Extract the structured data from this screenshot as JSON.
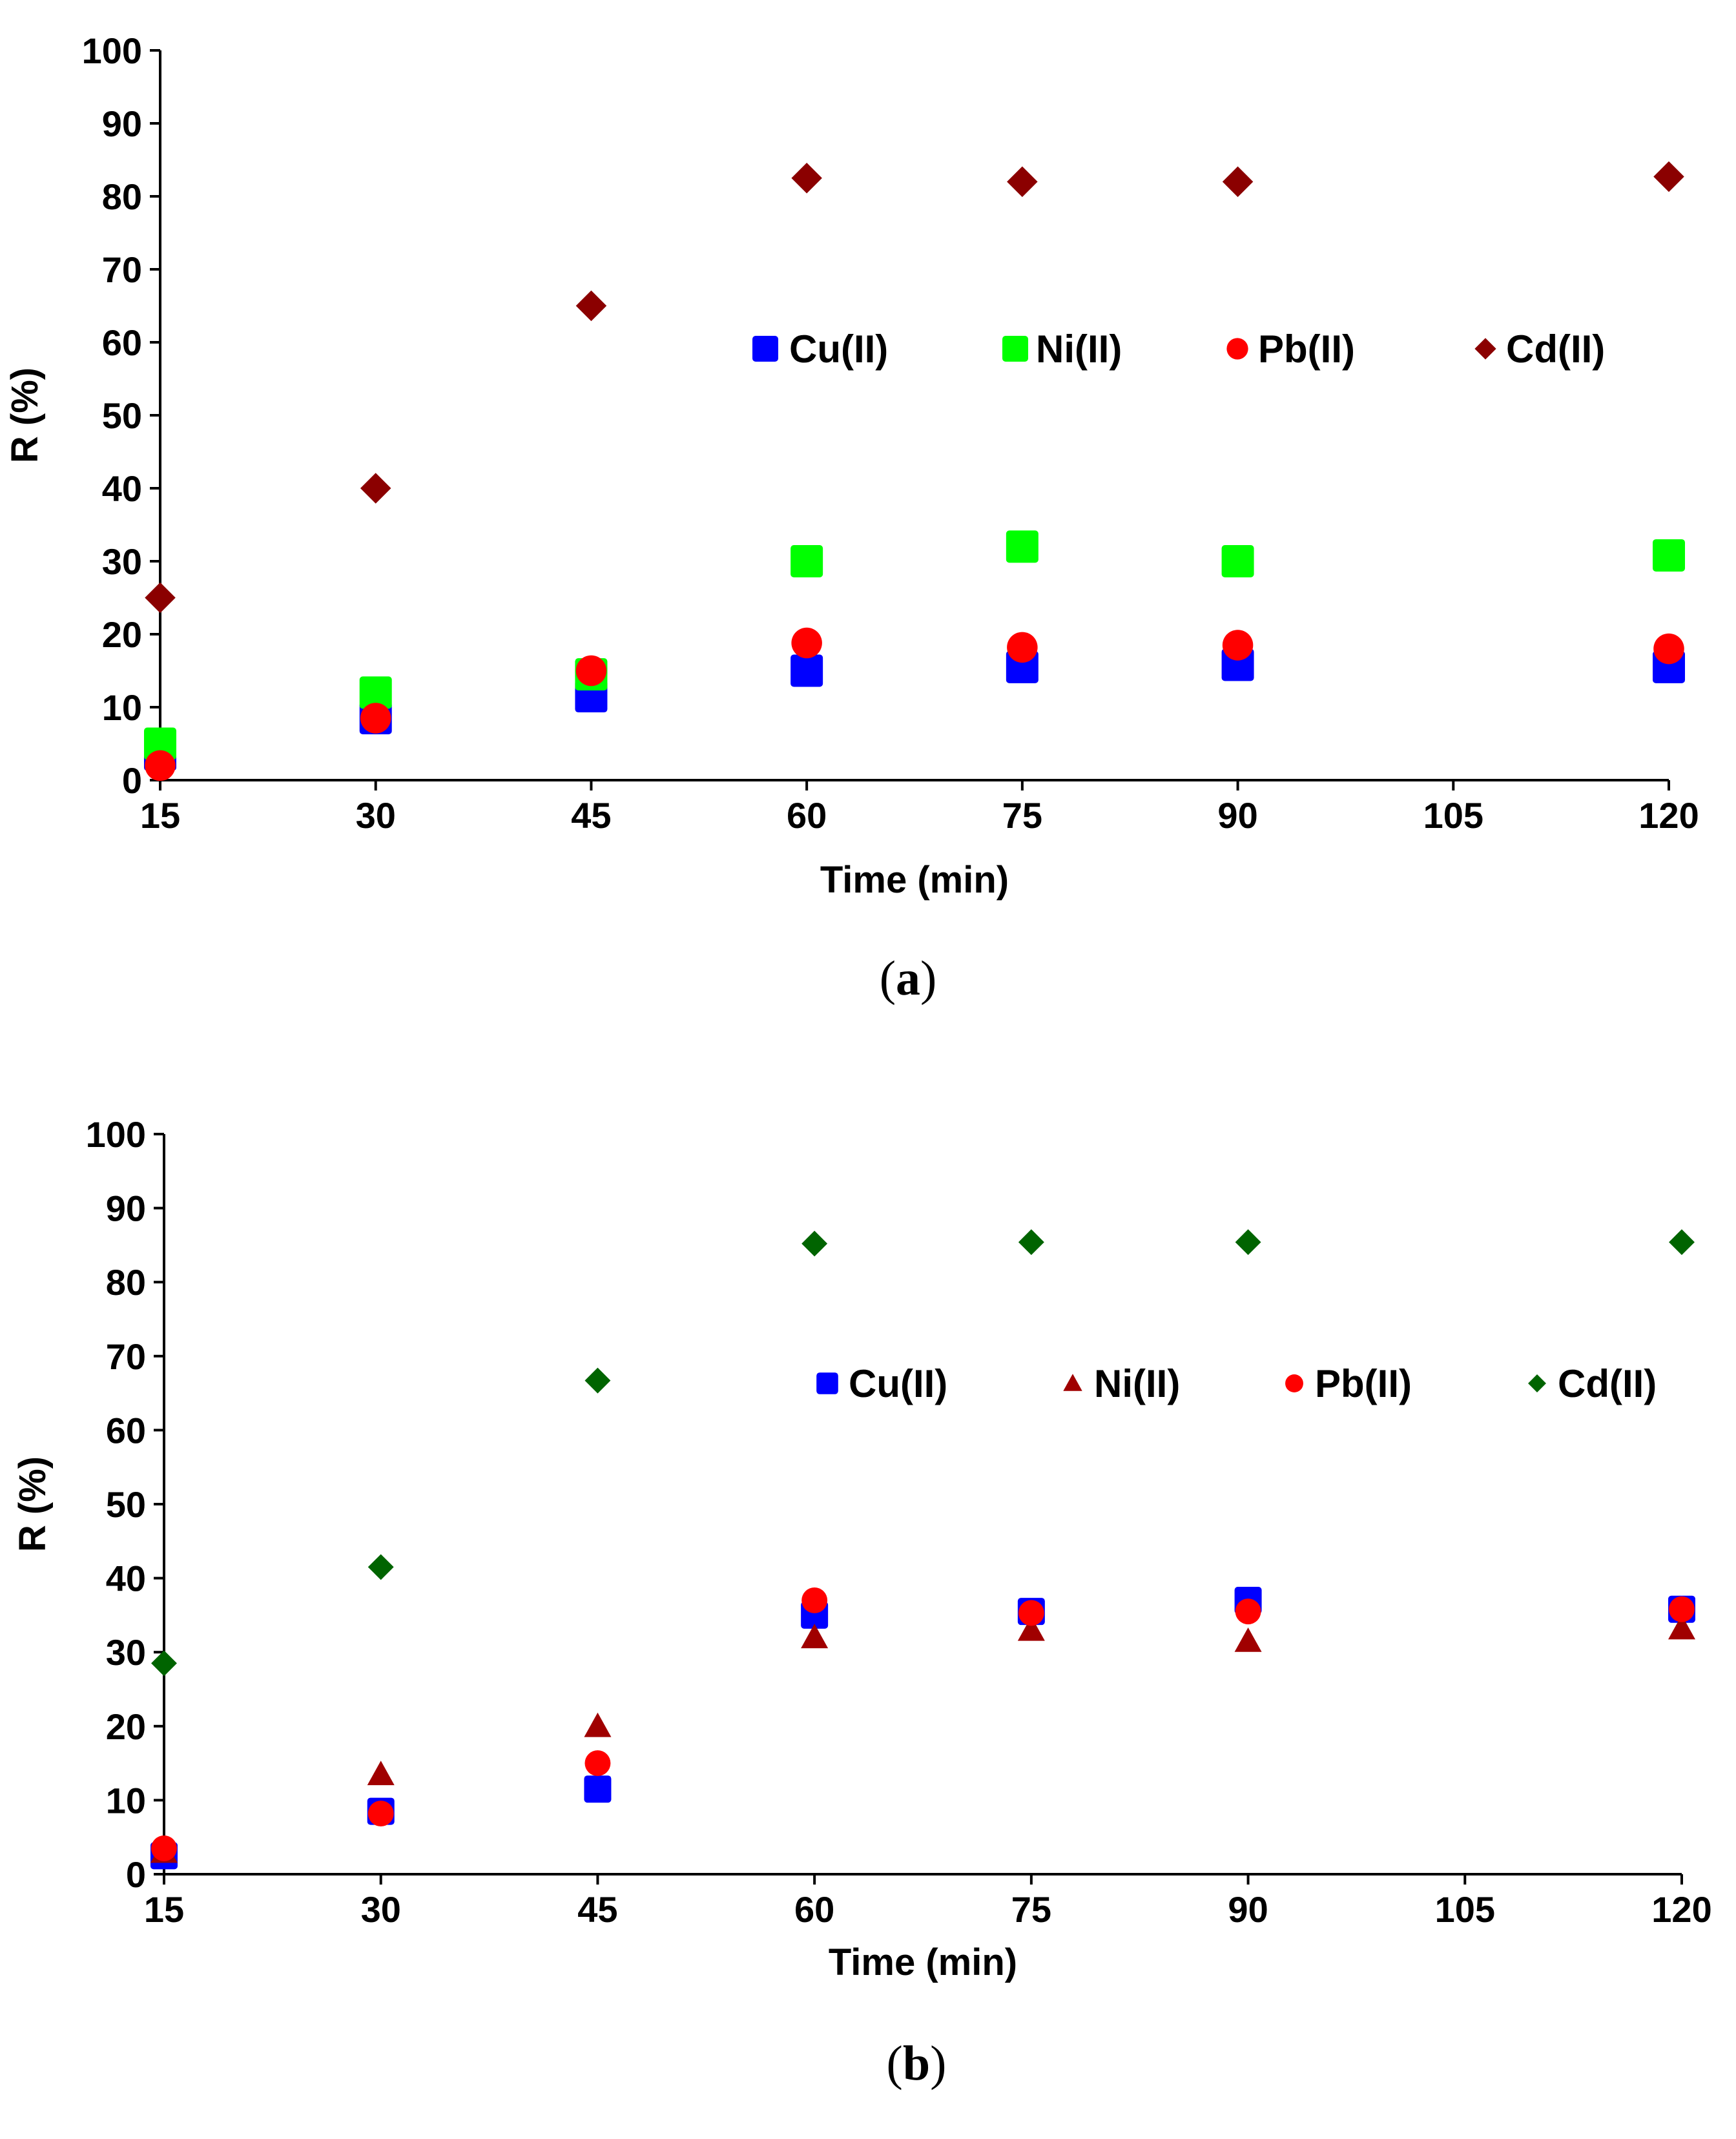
{
  "chart_data": [
    {
      "type": "scatter",
      "panel": "(a)",
      "panel_letter": "a",
      "title": "",
      "xlabel": "Time (min)",
      "ylabel": "R (%)",
      "xlim": [
        15,
        120
      ],
      "ylim": [
        0,
        100
      ],
      "xticks": [
        15,
        30,
        45,
        60,
        75,
        90,
        105,
        120
      ],
      "yticks": [
        0,
        10,
        20,
        30,
        40,
        50,
        60,
        70,
        80,
        90,
        100
      ],
      "grid": false,
      "legend_position": "upper-right-inside",
      "x": [
        15,
        30,
        45,
        60,
        75,
        90,
        120
      ],
      "series": [
        {
          "name": "Cu(II)",
          "marker": "square",
          "color": "#0000ff",
          "values": [
            3.5,
            8.5,
            11.5,
            15,
            15.5,
            15.8,
            15.5
          ]
        },
        {
          "name": "Ni(II)",
          "marker": "square",
          "color": "#00ff00",
          "values": [
            5,
            12,
            14.5,
            30,
            32,
            30,
            30.8
          ]
        },
        {
          "name": "Pb(II)",
          "marker": "circle",
          "color": "#ff0000",
          "values": [
            2,
            8.5,
            15,
            18.8,
            18.2,
            18.5,
            18
          ]
        },
        {
          "name": "Cd(II)",
          "marker": "diamond",
          "color": "#8b0000",
          "values": [
            25,
            40,
            65,
            82.5,
            82,
            82,
            82.7
          ]
        }
      ]
    },
    {
      "type": "scatter",
      "panel": "(b)",
      "panel_letter": "b",
      "title": "",
      "xlabel": "Time (min)",
      "ylabel": "R (%)",
      "xlim": [
        15,
        120
      ],
      "ylim": [
        0,
        100
      ],
      "xticks": [
        15,
        30,
        45,
        60,
        75,
        90,
        105,
        120
      ],
      "yticks": [
        0,
        10,
        20,
        30,
        40,
        50,
        60,
        70,
        80,
        90,
        100
      ],
      "grid": false,
      "legend_position": "upper-right-inside",
      "x": [
        15,
        30,
        45,
        60,
        75,
        90,
        120
      ],
      "series": [
        {
          "name": "Cu(II)",
          "marker": "square",
          "color": "#0000ff",
          "values": [
            2.5,
            8.5,
            11.5,
            35,
            35.5,
            37,
            35.8
          ]
        },
        {
          "name": "Ni(II)",
          "marker": "triangle",
          "color": "#a00000",
          "values": [
            3,
            13.5,
            20,
            32,
            33,
            31.5,
            33.2
          ]
        },
        {
          "name": "Pb(II)",
          "marker": "circle",
          "color": "#ff0000",
          "values": [
            3.5,
            8.2,
            15,
            37,
            35.3,
            35.5,
            35.8
          ]
        },
        {
          "name": "Cd(II)",
          "marker": "diamond",
          "color": "#006400",
          "values": [
            28.5,
            41.5,
            66.7,
            85.2,
            85.4,
            85.4,
            85.4
          ]
        }
      ]
    }
  ]
}
